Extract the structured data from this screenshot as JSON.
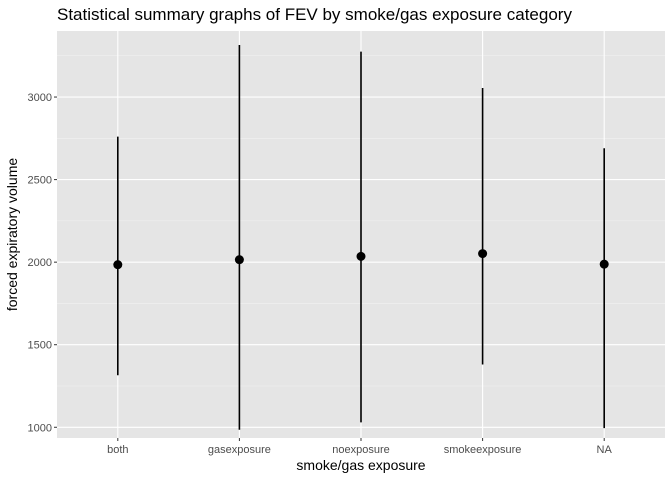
{
  "chart_data": {
    "type": "pointrange",
    "title": "Statistical summary graphs of FEV by smoke/gas exposure category",
    "xlabel": "smoke/gas exposure",
    "ylabel": "forced expiratory volume",
    "categories": [
      "both",
      "gasexposure",
      "noexposure",
      "smokeexposure",
      "NA"
    ],
    "y": [
      1985,
      2015,
      2035,
      2052,
      1988
    ],
    "ymin": [
      1315,
      985,
      1030,
      1380,
      995
    ],
    "ymax": [
      2760,
      3315,
      3275,
      3055,
      2690
    ],
    "yticks": [
      1000,
      1500,
      2000,
      2500,
      3000
    ],
    "ylim": [
      935,
      3400
    ],
    "grid": true,
    "legend": "none",
    "colors": {
      "panel": "#e5e5e5",
      "grid_major": "#ffffff",
      "marks": "#000000",
      "tick_text": "#4d4d4d"
    }
  }
}
